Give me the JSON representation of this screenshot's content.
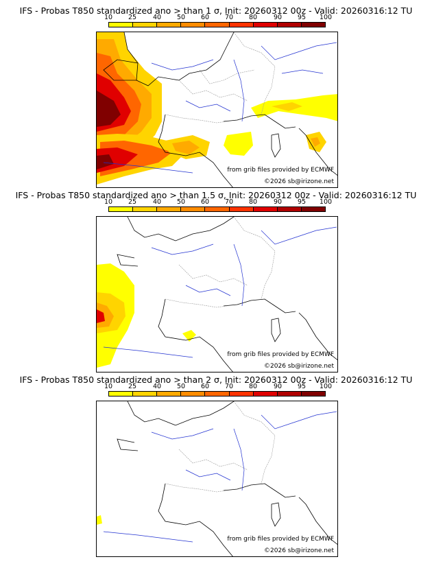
{
  "scale": {
    "labels": [
      "10",
      "25",
      "40",
      "50",
      "60",
      "70",
      "80",
      "90",
      "95",
      "100"
    ],
    "colors": [
      "#ffff00",
      "#ffd400",
      "#ffaa00",
      "#ff8c00",
      "#ff6600",
      "#ff3300",
      "#e00000",
      "#b00000",
      "#800000"
    ]
  },
  "panels": [
    {
      "title": "IFS - Probas T850  standardized ano > than 1 σ, Init: 20260312 00z - Valid: 20260316:12 TU",
      "credit_line1": "from grib files provided by ECMWF",
      "credit_line2": "©2026 sb@irizone.net",
      "probability_coverage": "high"
    },
    {
      "title": "IFS - Probas T850  standardized ano > than 1.5 σ, Init: 20260312 00z - Valid: 20260316:12 TU",
      "credit_line1": "from grib files provided by ECMWF",
      "credit_line2": "©2026 sb@irizone.net",
      "probability_coverage": "medium"
    },
    {
      "title": "IFS - Probas T850  standardized ano > than 2 σ, Init: 20260312 00z - Valid: 20260316:12 TU",
      "credit_line1": "from grib files provided by ECMWF",
      "credit_line2": "©2026 sb@irizone.net",
      "probability_coverage": "minimal"
    }
  ]
}
